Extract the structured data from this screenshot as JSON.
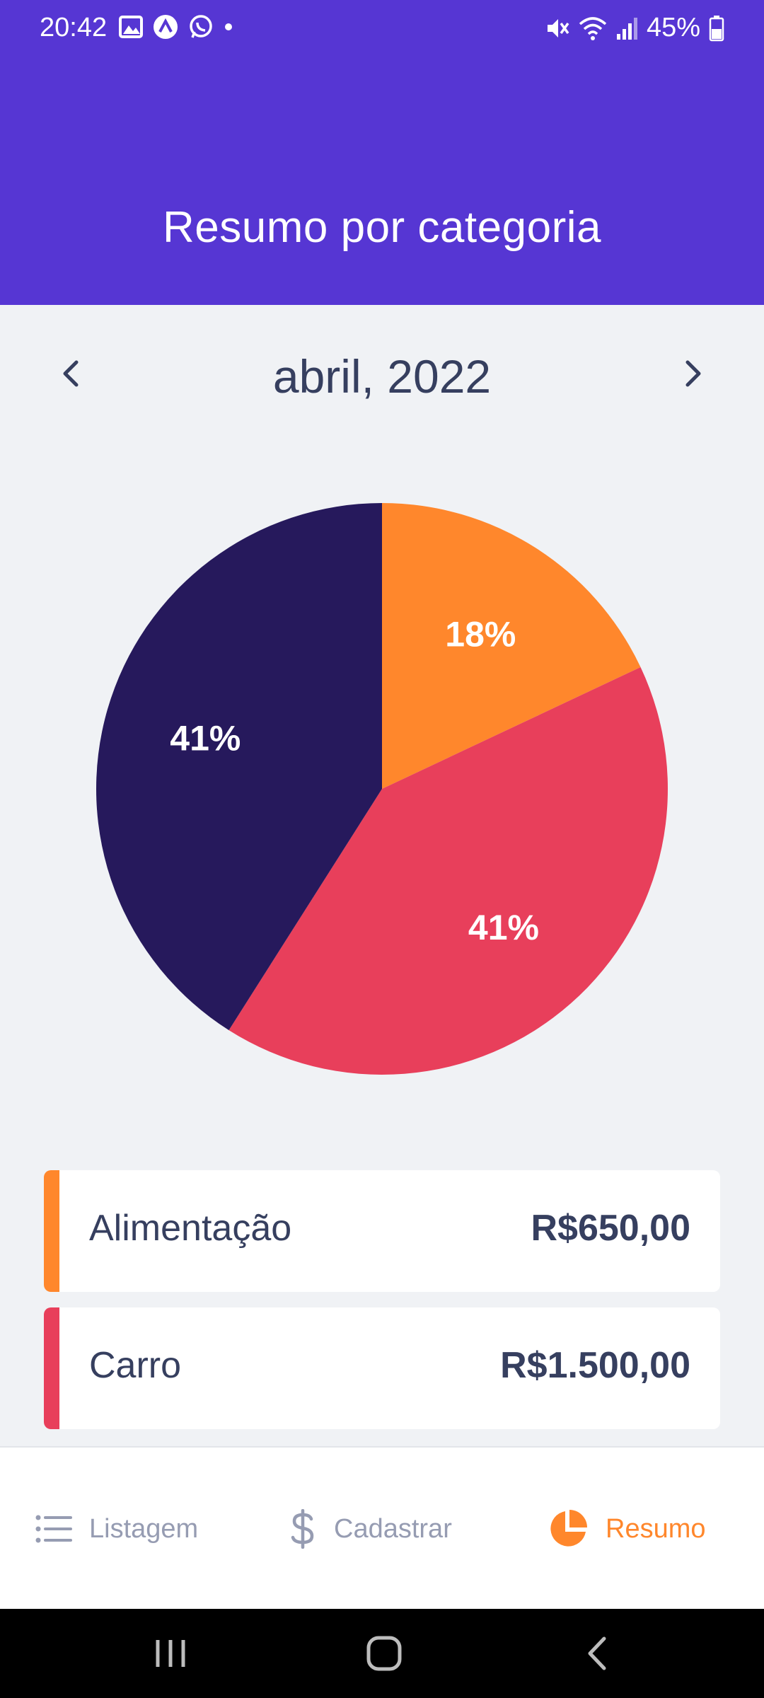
{
  "status_bar": {
    "time": "20:42",
    "battery": "45%"
  },
  "header": {
    "title": "Resumo por categoria"
  },
  "month_selector": {
    "label": "abril, 2022"
  },
  "colors": {
    "primary": "#5636D3",
    "background": "#F0F2F5",
    "alimentacao": "#FF872C",
    "carro": "#E83F5B",
    "third_category": "#26195C",
    "text": "#363F5F",
    "tab_inactive": "#969CB2",
    "tab_active": "#FF872C"
  },
  "chart_data": {
    "type": "pie",
    "slices": [
      {
        "label": "18%",
        "value": 18,
        "color": "#FF872C"
      },
      {
        "label": "41%",
        "value": 41,
        "color": "#E83F5B"
      },
      {
        "label": "41%",
        "value": 41,
        "color": "#26195C"
      }
    ]
  },
  "categories": [
    {
      "name": "Alimentação",
      "amount": "R$650,00",
      "color": "#FF872C"
    },
    {
      "name": "Carro",
      "amount": "R$1.500,00",
      "color": "#E83F5B"
    }
  ],
  "tabs": [
    {
      "label": "Listagem",
      "icon": "list-icon",
      "active": false
    },
    {
      "label": "Cadastrar",
      "icon": "dollar-icon",
      "active": false
    },
    {
      "label": "Resumo",
      "icon": "pie-chart-icon",
      "active": true
    }
  ]
}
